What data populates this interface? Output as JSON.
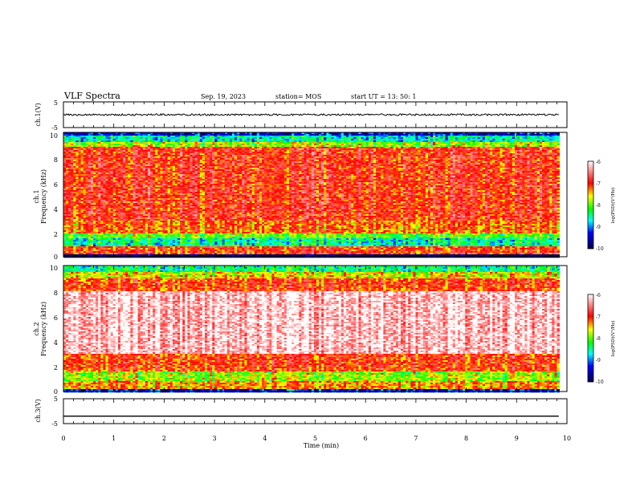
{
  "header": {
    "title": "VLF Spectra",
    "date": "Sep. 19, 2023",
    "station": "station= MOS",
    "start": "start  UT =   13: 50: 1"
  },
  "chart_data": [
    {
      "type": "line",
      "name": "ch1-waveform",
      "ylabel": "ch.1(V)",
      "yticks": [
        "5",
        "-5"
      ],
      "ylim": [
        -5,
        5
      ],
      "xlim": [
        0,
        10
      ],
      "baseline": 0.0,
      "series": [
        {
          "values": [
            0.0
          ]
        }
      ],
      "end_x": 9.85
    },
    {
      "type": "heatmap",
      "name": "ch1-spectrogram",
      "ylabel": "Frequency (kHz)",
      "sublabel": "ch.1",
      "ylim": [
        0,
        10
      ],
      "yticks": [
        "0",
        "2",
        "4",
        "6",
        "8",
        "10"
      ],
      "xlim": [
        0,
        10
      ],
      "end_x": 9.85,
      "bands": [
        {
          "from": 0.0,
          "to": 0.3,
          "level": -10
        },
        {
          "from": 0.3,
          "to": 0.9,
          "level": -7
        },
        {
          "from": 0.9,
          "to": 1.5,
          "level": -8.5
        },
        {
          "from": 1.5,
          "to": 1.9,
          "level": -8
        },
        {
          "from": 1.9,
          "to": 3.0,
          "level": -7.2
        },
        {
          "from": 3.0,
          "to": 8.9,
          "level": -6.9
        },
        {
          "from": 8.9,
          "to": 9.3,
          "level": -7.8
        },
        {
          "from": 9.3,
          "to": 9.8,
          "level": -8.6
        },
        {
          "from": 9.8,
          "to": 10.0,
          "level": -9.4
        }
      ],
      "colorbar": {
        "label": "log(PSD)(V²/Hz)",
        "ticks": [
          "-6",
          "-7",
          "-8",
          "-9",
          "-10"
        ],
        "range": [
          -10,
          -6
        ]
      }
    },
    {
      "type": "heatmap",
      "name": "ch2-spectrogram",
      "ylabel": "Frequency (kHz)",
      "sublabel": "ch.2",
      "ylim": [
        0,
        10
      ],
      "yticks": [
        "0",
        "2",
        "4",
        "6",
        "8",
        "10"
      ],
      "xlim": [
        0,
        10
      ],
      "end_x": 9.85,
      "bands": [
        {
          "from": 0.0,
          "to": 0.2,
          "level": -9.3
        },
        {
          "from": 0.2,
          "to": 0.9,
          "level": -7.3
        },
        {
          "from": 0.9,
          "to": 1.7,
          "level": -7.8
        },
        {
          "from": 1.7,
          "to": 3.0,
          "level": -7.0
        },
        {
          "from": 3.0,
          "to": 8.0,
          "level": -6.0
        },
        {
          "from": 8.0,
          "to": 9.0,
          "level": -7.0
        },
        {
          "from": 9.0,
          "to": 9.6,
          "level": -7.6
        },
        {
          "from": 9.6,
          "to": 10.0,
          "level": -8.4
        }
      ],
      "colorbar": {
        "label": "log(PSD)(V²/Hz)",
        "ticks": [
          "-6",
          "-7",
          "-8",
          "-9",
          "-10"
        ],
        "range": [
          -10,
          -6
        ]
      }
    },
    {
      "type": "line",
      "name": "ch3-waveform",
      "ylabel": "ch.3(V)",
      "yticks": [
        "5",
        "-5"
      ],
      "ylim": [
        -5,
        5
      ],
      "xlim": [
        0,
        10
      ],
      "baseline": -2.0,
      "series": [
        {
          "values": [
            -2.0
          ]
        }
      ],
      "end_x": 9.85
    }
  ],
  "xaxis": {
    "label": "Time (min)",
    "ticks": [
      "0",
      "1",
      "2",
      "3",
      "4",
      "5",
      "6",
      "7",
      "8",
      "9",
      "10"
    ]
  },
  "colors": {
    "colormap": [
      "#000050",
      "#0000ff",
      "#00ffff",
      "#00ff00",
      "#ffff00",
      "#ff0000",
      "#ffffff"
    ]
  }
}
